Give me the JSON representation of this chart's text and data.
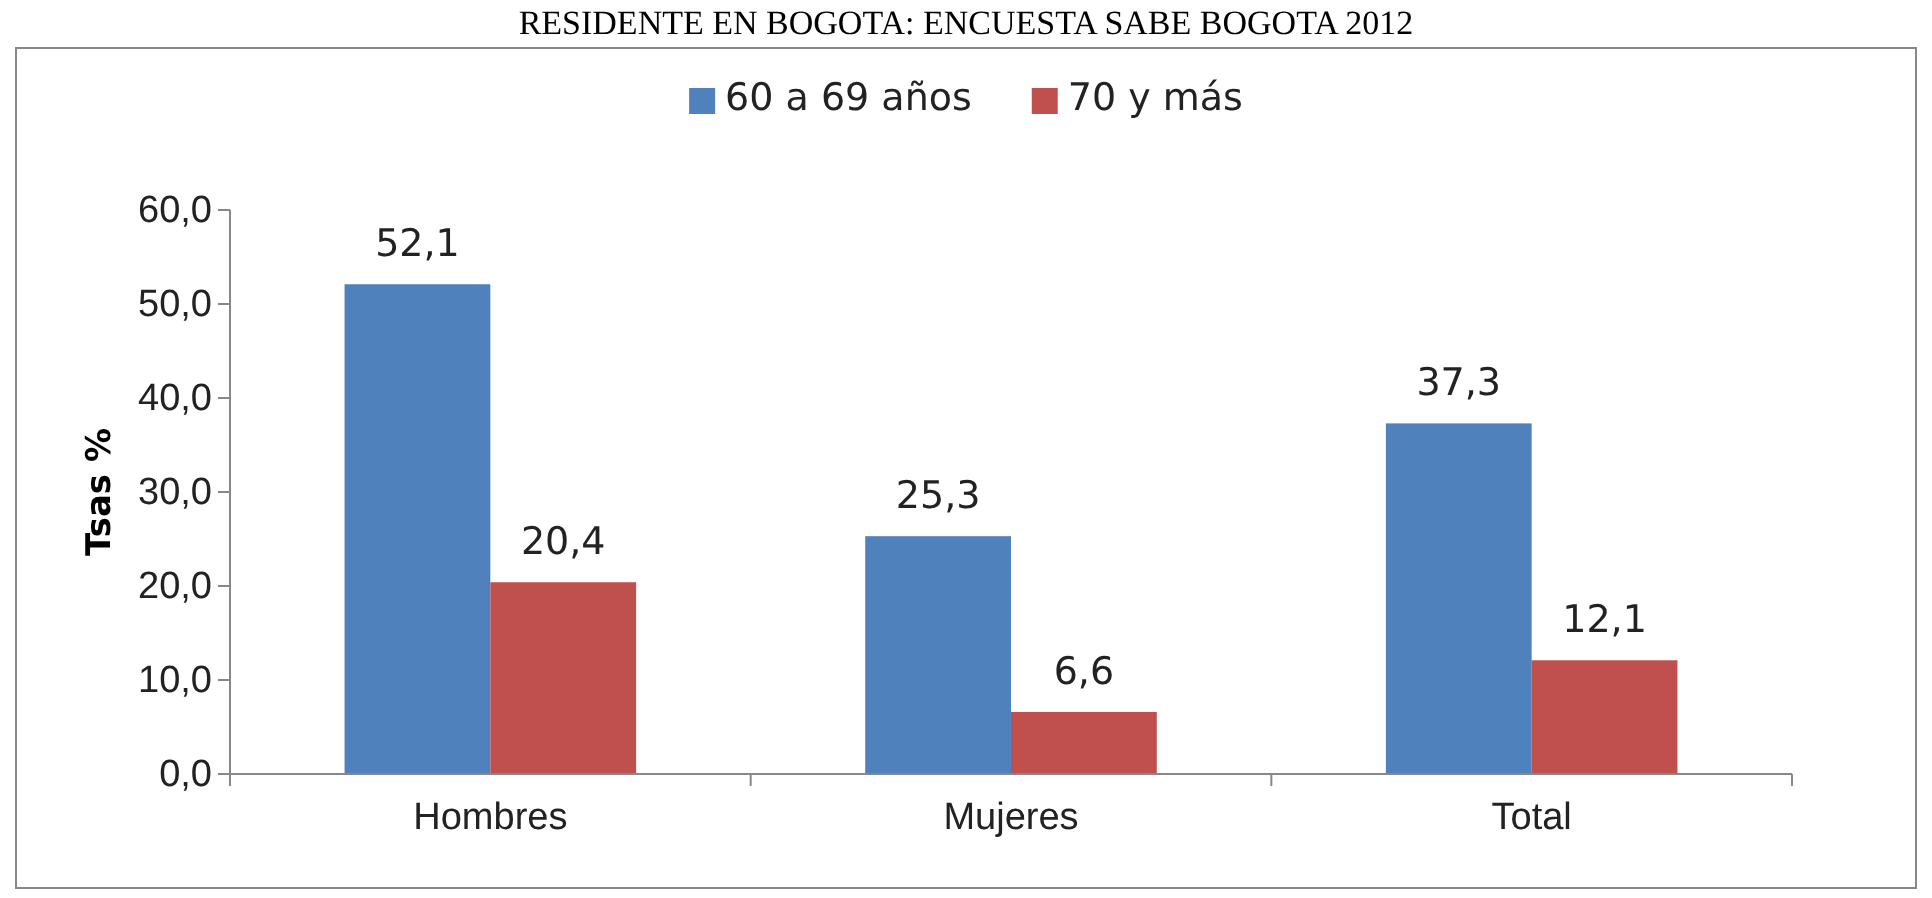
{
  "chart_data": {
    "type": "bar",
    "title": "RESIDENTE EN BOGOTA: ENCUESTA SABE BOGOTA 2012",
    "ylabel": "Tsas %",
    "categories": [
      "Hombres",
      "Mujeres",
      "Total"
    ],
    "series": [
      {
        "name": "60 a 69 años",
        "color": "#4f81bd",
        "values": [
          52.1,
          25.3,
          37.3
        ],
        "value_labels": [
          "52,1",
          "25,3",
          "37,3"
        ]
      },
      {
        "name": "70 y más",
        "color": "#c0504d",
        "values": [
          20.4,
          6.6,
          12.1
        ],
        "value_labels": [
          "20,4",
          "6,6",
          "12,1"
        ]
      }
    ],
    "ylim": [
      0,
      60
    ],
    "yticks": [
      {
        "value": 0,
        "label": "0,0"
      },
      {
        "value": 10,
        "label": "10,0"
      },
      {
        "value": 20,
        "label": "20,0"
      },
      {
        "value": 30,
        "label": "30,0"
      },
      {
        "value": 40,
        "label": "40,0"
      },
      {
        "value": 50,
        "label": "50,0"
      },
      {
        "value": 60,
        "label": "60,0"
      }
    ],
    "legend": "top",
    "grid": false
  }
}
